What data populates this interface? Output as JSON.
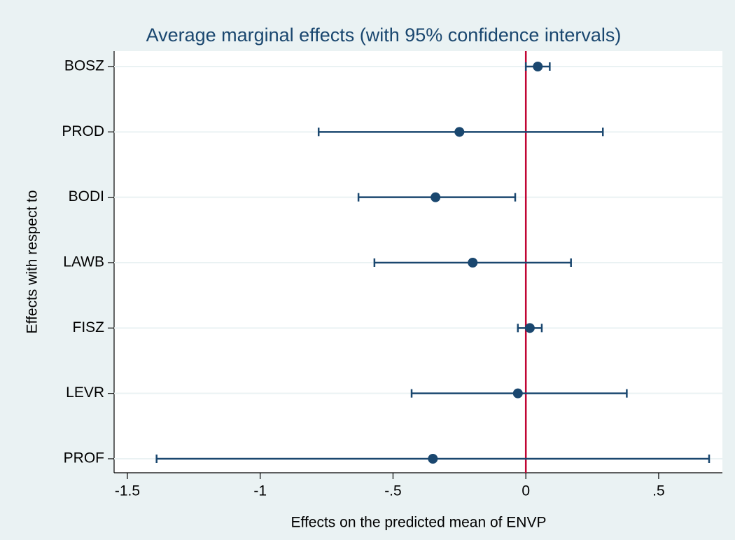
{
  "chart_data": {
    "type": "coefficient",
    "title": "Average marginal effects (with 95% confidence intervals)",
    "x_label": "Effects on the predicted mean of ENVP",
    "y_label": "Effects with respect to",
    "categories": [
      "BOSZ",
      "PROD",
      "BODI",
      "LAWB",
      "FISZ",
      "LEVR",
      "PROF"
    ],
    "values": [
      0.045,
      -0.25,
      -0.34,
      -0.2,
      0.015,
      -0.03,
      -0.35
    ],
    "lower": [
      0.0,
      -0.78,
      -0.63,
      -0.57,
      -0.03,
      -0.43,
      -1.39
    ],
    "upper": [
      0.09,
      0.29,
      -0.04,
      0.17,
      0.06,
      0.38,
      0.69
    ],
    "color": "#1a476f",
    "xline": 0,
    "xline_color": "#c10534",
    "xlim": [
      -1.55,
      0.74
    ],
    "xticks": [
      -1.5,
      -1,
      {
        "value": -0.5,
        "label": "-.5"
      },
      0,
      {
        "value": 0.5,
        "label": ".5"
      }
    ],
    "grid": true
  }
}
